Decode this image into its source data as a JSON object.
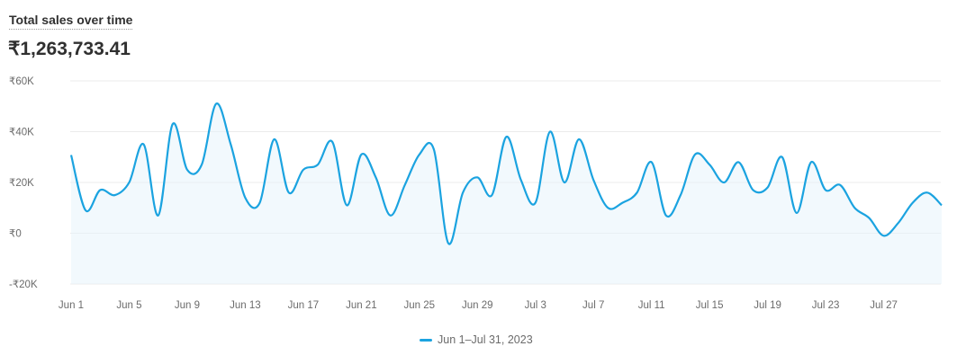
{
  "header": {
    "title": "Total sales over time",
    "total": "₹1,263,733.41"
  },
  "colors": {
    "line": "#1ba3e0",
    "grid": "#ebebeb",
    "fill": "#e8f4fb"
  },
  "chart_data": {
    "type": "line",
    "title": "Total sales over time",
    "xlabel": "",
    "ylabel": "",
    "ylim": [
      -20000,
      60000
    ],
    "yticks": [
      60000,
      40000,
      20000,
      0,
      -20000
    ],
    "ytick_labels": [
      "₹60K",
      "₹40K",
      "₹20K",
      "₹0",
      "-₹20K"
    ],
    "xtick_labels": [
      "Jun 1",
      "Jun 5",
      "Jun 9",
      "Jun 13",
      "Jun 17",
      "Jun 21",
      "Jun 25",
      "Jun 29",
      "Jul 3",
      "Jul 7",
      "Jul 11",
      "Jul 15",
      "Jul 19",
      "Jul 23",
      "Jul 27"
    ],
    "xtick_every_days": 4,
    "grid": true,
    "legend_position": "bottom-center",
    "series": [
      {
        "name": "Jun 1–Jul 31, 2023",
        "values": [
          30800,
          9000,
          17000,
          15000,
          20000,
          35000,
          7000,
          43000,
          25000,
          27000,
          51000,
          35000,
          14000,
          12000,
          37000,
          16000,
          25000,
          27000,
          36000,
          11000,
          31000,
          22000,
          7000,
          19000,
          31000,
          33000,
          -4000,
          16000,
          22000,
          15000,
          38000,
          21000,
          12000,
          40000,
          20000,
          37000,
          21000,
          10000,
          12000,
          16000,
          28000,
          7000,
          15000,
          31000,
          27000,
          20000,
          28000,
          17000,
          18000,
          30000,
          8000,
          28000,
          17000,
          19000,
          10000,
          6000,
          -1000,
          4000,
          12000,
          16000,
          11000
        ]
      }
    ]
  }
}
